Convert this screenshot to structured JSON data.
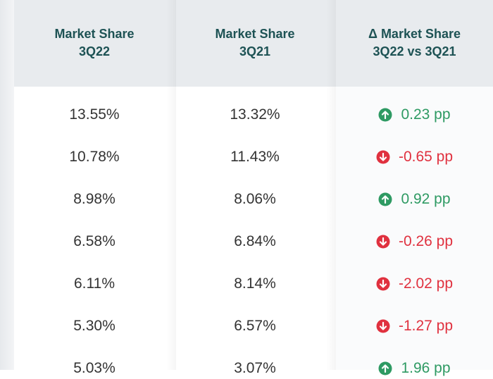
{
  "table": {
    "columns": [
      {
        "lines": [
          "Market Share",
          "3Q22"
        ]
      },
      {
        "lines": [
          "Market Share",
          "3Q21"
        ]
      },
      {
        "lines": [
          "Δ Market Share",
          "3Q22 vs 3Q21"
        ]
      }
    ],
    "rows": [
      {
        "cells": [
          "13.55%",
          "13.32%",
          "0.23 pp"
        ],
        "trend": "up"
      },
      {
        "cells": [
          "10.78%",
          "11.43%",
          "-0.65 pp"
        ],
        "trend": "down"
      },
      {
        "cells": [
          "8.98%",
          "8.06%",
          "0.92 pp"
        ],
        "trend": "up"
      },
      {
        "cells": [
          "6.58%",
          "6.84%",
          "-0.26 pp"
        ],
        "trend": "down"
      },
      {
        "cells": [
          "6.11%",
          "8.14%",
          "-2.02 pp"
        ],
        "trend": "down"
      },
      {
        "cells": [
          "5.30%",
          "6.57%",
          "-1.27 pp"
        ],
        "trend": "down"
      },
      {
        "cells": [
          "5.03%",
          "3.07%",
          "1.96 pp"
        ],
        "trend": "up"
      }
    ],
    "trend_colors": {
      "up": "#2e9a63",
      "down": "#e0313f"
    }
  }
}
